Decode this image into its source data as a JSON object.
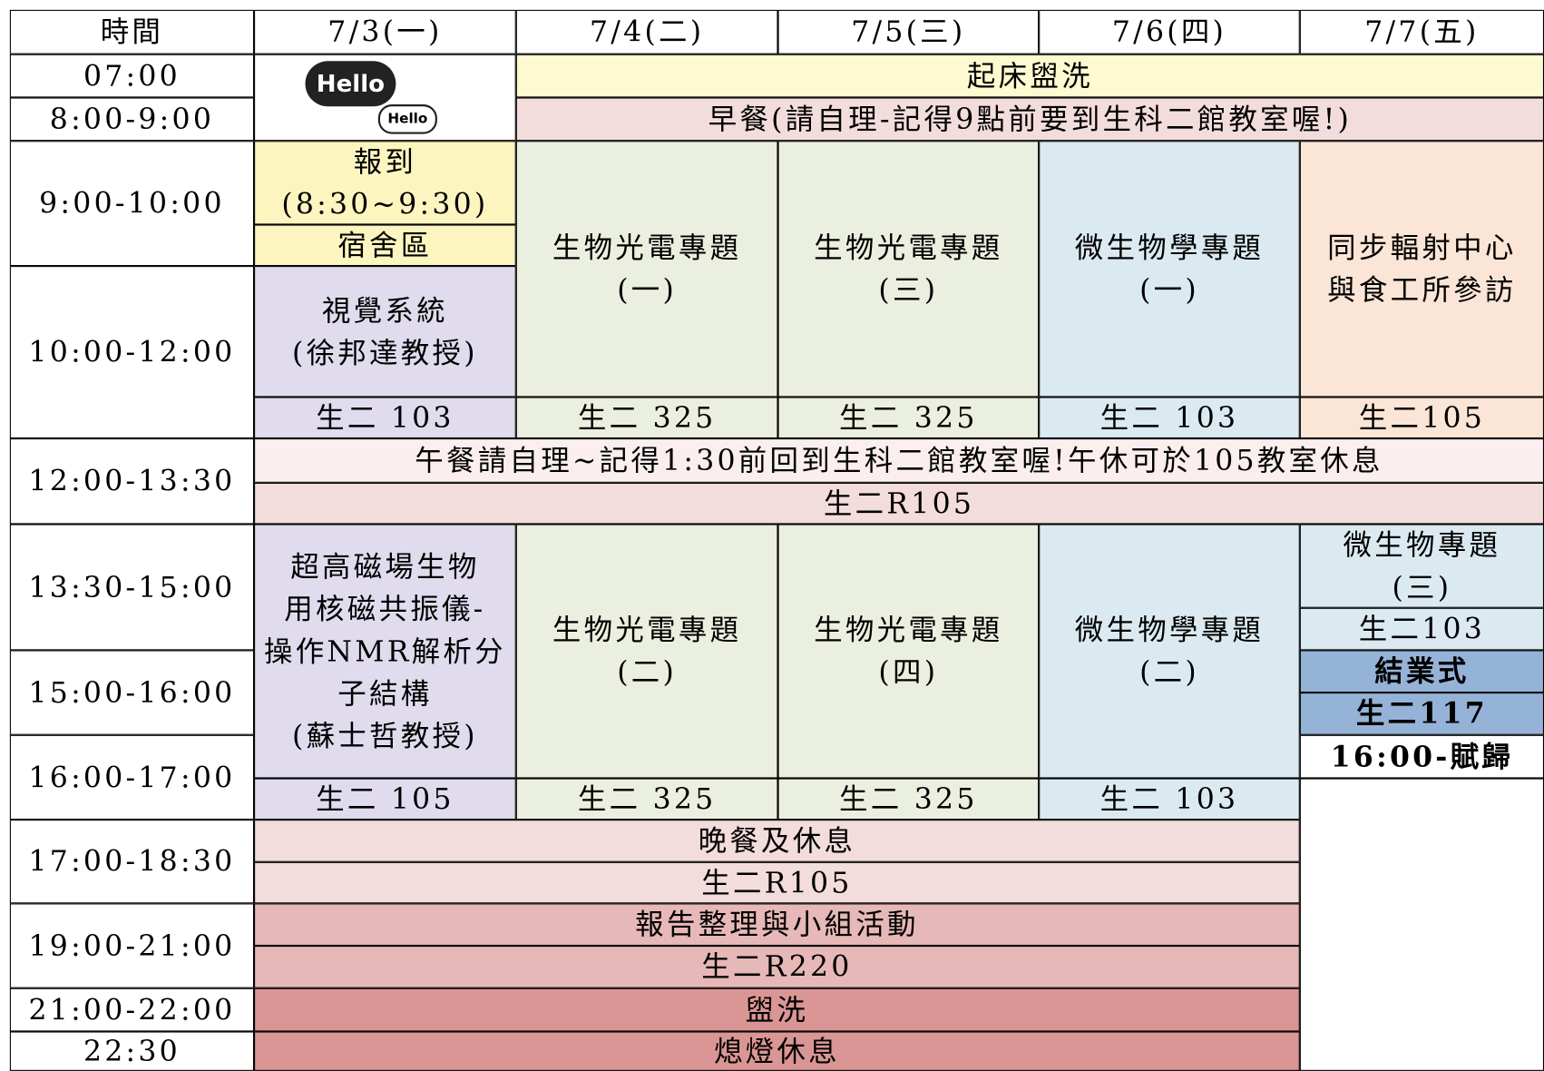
{
  "time_column": {
    "header": "時間",
    "slots": [
      "07:00",
      "8:00-9:00",
      "9:00-10:00",
      "10:00-12:00",
      "12:00-13:30",
      "13:30-15:00",
      "15:00-16:00",
      "16:00-17:00",
      "17:00-18:30",
      "19:00-21:00",
      "21:00-22:00",
      "22:30"
    ]
  },
  "days": [
    "7/3(一)",
    "7/4(二)",
    "7/5(三)",
    "7/6(四)",
    "7/7(五)"
  ],
  "hello_sticker": [
    "Hello",
    "Hello"
  ],
  "blocks": [
    {
      "lines": [
        "起床盥洗"
      ]
    },
    {
      "lines": [
        "早餐(請自理-記得9點前要到生科二館教室喔!)"
      ]
    },
    {
      "lines": [
        "報到",
        "(8:30~9:30)"
      ]
    },
    {
      "lines": [
        "宿舍區"
      ]
    },
    {
      "lines": [
        "視覺系統",
        "(徐邦達教授)"
      ]
    },
    {
      "lines": [
        "生二 103"
      ]
    },
    {
      "lines": [
        "生物光電專題",
        "(一)"
      ]
    },
    {
      "lines": [
        "生二 325"
      ]
    },
    {
      "lines": [
        "生物光電專題",
        "(三)"
      ]
    },
    {
      "lines": [
        "生二 325"
      ]
    },
    {
      "lines": [
        "微生物學專題",
        "(一)"
      ]
    },
    {
      "lines": [
        "生二 103"
      ]
    },
    {
      "lines": [
        "同步輻射中心",
        "與食工所參訪"
      ]
    },
    {
      "lines": [
        "生二105"
      ]
    },
    {
      "lines": [
        "午餐請自理~記得1:30前回到生科二館教室喔!午休可於105教室休息"
      ]
    },
    {
      "lines": [
        "生二R105"
      ]
    },
    {
      "lines": [
        "超高磁場生物",
        "用核磁共振儀-",
        "操作NMR解析分",
        "子結構",
        "(蘇士哲教授)"
      ]
    },
    {
      "lines": [
        "生二 105"
      ]
    },
    {
      "lines": [
        "生物光電專題",
        "(二)"
      ]
    },
    {
      "lines": [
        "生二 325"
      ]
    },
    {
      "lines": [
        "生物光電專題",
        "(四)"
      ]
    },
    {
      "lines": [
        "生二 325"
      ]
    },
    {
      "lines": [
        "微生物學專題",
        "(二)"
      ]
    },
    {
      "lines": [
        "生二 103"
      ]
    },
    {
      "lines": [
        "微生物專題",
        "(三)"
      ]
    },
    {
      "lines": [
        "生二103"
      ]
    },
    {
      "lines": [
        "結業式"
      ]
    },
    {
      "lines": [
        "生二117"
      ]
    },
    {
      "lines": [
        "16:00-賦歸"
      ]
    },
    {
      "lines": [
        "晚餐及休息"
      ]
    },
    {
      "lines": [
        "生二R105"
      ]
    },
    {
      "lines": [
        "報告整理與小組活動"
      ]
    },
    {
      "lines": [
        "生二R220"
      ]
    },
    {
      "lines": [
        "盥洗"
      ]
    },
    {
      "lines": [
        "熄燈休息"
      ]
    }
  ]
}
